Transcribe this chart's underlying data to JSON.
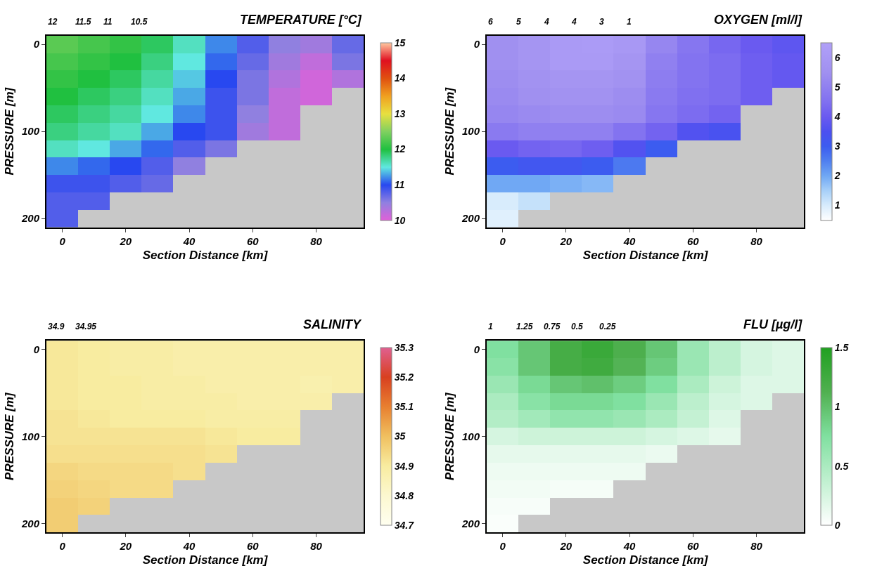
{
  "chart_data": [
    {
      "type": "heatmap",
      "title": "TEMPERATURE [°C]",
      "xlabel": "Section Distance [km]",
      "ylabel": "PRESSURE [m]",
      "categories": [
        "0",
        null,
        "20",
        null,
        "40",
        null,
        "60",
        null,
        "80",
        null
      ],
      "y_categories": [
        "0",
        null,
        null,
        null,
        null,
        "100",
        null,
        null,
        null,
        null,
        "200"
      ],
      "cells": [
        [
          12.3,
          12.2,
          12.1,
          11.9,
          11.6,
          11.2,
          10.8,
          10.5,
          10.4,
          10.7
        ],
        [
          12.2,
          12.1,
          12.0,
          11.8,
          11.5,
          11.1,
          10.7,
          10.4,
          10.2,
          10.6
        ],
        [
          12.1,
          12.0,
          11.9,
          11.7,
          11.4,
          11.0,
          10.6,
          10.3,
          10.1,
          10.3
        ],
        [
          12.0,
          11.9,
          11.8,
          11.6,
          11.3,
          10.9,
          10.6,
          10.2,
          10.1,
          null
        ],
        [
          11.9,
          11.8,
          11.7,
          11.5,
          11.2,
          10.9,
          10.5,
          10.2,
          null,
          null
        ],
        [
          11.8,
          11.7,
          11.6,
          11.3,
          11.0,
          10.9,
          10.4,
          10.2,
          null,
          null
        ],
        [
          11.6,
          11.5,
          11.3,
          11.1,
          10.8,
          10.6,
          null,
          null,
          null,
          null
        ],
        [
          11.2,
          11.1,
          11.0,
          10.8,
          10.5,
          null,
          null,
          null,
          null,
          null
        ],
        [
          10.9,
          10.9,
          10.8,
          10.7,
          null,
          null,
          null,
          null,
          null,
          null
        ],
        [
          10.8,
          10.8,
          null,
          null,
          null,
          null,
          null,
          null,
          null,
          null
        ],
        [
          10.8,
          null,
          null,
          null,
          null,
          null,
          null,
          null,
          null,
          null
        ]
      ],
      "colors": [
        "#e060d8",
        "#9080e0",
        "#2848f0",
        "#60e8e0",
        "#20c040",
        "#80d060",
        "#e8e040",
        "#f0a020",
        "#e05010",
        "#e01020",
        "#ffc8a0"
      ],
      "clim": [
        10,
        15
      ],
      "cticks": [
        10,
        11,
        12,
        13,
        14,
        15
      ],
      "annotations": [
        "12",
        "11.5",
        "11",
        "10.5"
      ]
    },
    {
      "type": "heatmap",
      "title": "OXYGEN [ml/l]",
      "xlabel": "Section Distance [km]",
      "ylabel": "PRESSURE [m]",
      "categories": [
        "0",
        null,
        "20",
        null,
        "40",
        null,
        "60",
        null,
        "80",
        null
      ],
      "y_categories": [
        "0",
        null,
        null,
        null,
        null,
        "100",
        null,
        null,
        null,
        null,
        "200"
      ],
      "cells": [
        [
          5.5,
          5.8,
          6.1,
          6.2,
          6.0,
          5.2,
          4.7,
          4.3,
          4.0,
          3.8
        ],
        [
          5.5,
          5.8,
          6.1,
          6.1,
          5.8,
          5.0,
          4.6,
          4.4,
          4.1,
          3.9
        ],
        [
          5.4,
          5.6,
          5.8,
          5.8,
          5.6,
          4.9,
          4.6,
          4.4,
          4.1,
          3.9
        ],
        [
          5.3,
          5.5,
          5.6,
          5.6,
          5.4,
          4.8,
          4.5,
          4.4,
          4.1,
          null
        ],
        [
          5.2,
          5.3,
          5.4,
          5.4,
          5.3,
          4.7,
          4.4,
          4.2,
          null,
          null
        ],
        [
          4.8,
          5.0,
          5.0,
          5.0,
          4.6,
          4.2,
          3.6,
          3.4,
          null,
          null
        ],
        [
          4.0,
          4.2,
          4.3,
          4.1,
          3.6,
          3.0,
          null,
          null,
          null,
          null
        ],
        [
          3.0,
          3.2,
          3.2,
          3.0,
          2.6,
          null,
          null,
          null,
          null,
          null
        ],
        [
          2.0,
          2.0,
          1.9,
          1.8,
          null,
          null,
          null,
          null,
          null,
          null
        ],
        [
          1.0,
          1.2,
          null,
          null,
          null,
          null,
          null,
          null,
          null,
          null
        ],
        [
          0.9,
          null,
          null,
          null,
          null,
          null,
          null,
          null,
          null,
          null
        ]
      ],
      "colors": [
        "#ffffff",
        "#d8ecfc",
        "#a8d0f8",
        "#70a8f4",
        "#5080f0",
        "#3c5cf0",
        "#4c50f0",
        "#6a5af0",
        "#8070f0",
        "#9080f0",
        "#a090f0",
        "#a898f4",
        "#b0a0f8"
      ],
      "clim": [
        0.5,
        6.5
      ],
      "cticks": [
        1,
        2,
        3,
        4,
        5,
        6
      ],
      "annotations": [
        "6",
        "5",
        "4",
        "4",
        "3",
        "1"
      ]
    },
    {
      "type": "heatmap",
      "title": "SALINITY",
      "xlabel": "Section Distance [km]",
      "ylabel": "PRESSURE [m]",
      "categories": [
        "0",
        null,
        "20",
        null,
        "40",
        null,
        "60",
        null,
        "80",
        null
      ],
      "y_categories": [
        "0",
        null,
        null,
        null,
        null,
        "100",
        null,
        null,
        null,
        null,
        "200"
      ],
      "cells": [
        [
          34.91,
          34.9,
          34.89,
          34.89,
          34.88,
          34.88,
          34.88,
          34.88,
          34.88,
          34.88
        ],
        [
          34.91,
          34.9,
          34.89,
          34.89,
          34.88,
          34.88,
          34.88,
          34.88,
          34.88,
          34.88
        ],
        [
          34.91,
          34.9,
          34.9,
          34.89,
          34.89,
          34.88,
          34.88,
          34.88,
          34.87,
          34.88
        ],
        [
          34.91,
          34.9,
          34.9,
          34.89,
          34.89,
          34.89,
          34.88,
          34.88,
          34.88,
          null
        ],
        [
          34.92,
          34.91,
          34.9,
          34.9,
          34.9,
          34.89,
          34.89,
          34.89,
          null,
          null
        ],
        [
          34.92,
          34.92,
          34.92,
          34.92,
          34.92,
          34.91,
          34.9,
          34.9,
          null,
          null
        ],
        [
          34.93,
          34.93,
          34.93,
          34.93,
          34.93,
          34.92,
          null,
          null,
          null,
          null
        ],
        [
          34.95,
          34.94,
          34.94,
          34.94,
          34.93,
          null,
          null,
          null,
          null,
          null
        ],
        [
          34.96,
          34.95,
          34.94,
          34.94,
          null,
          null,
          null,
          null,
          null,
          null
        ],
        [
          34.97,
          34.96,
          null,
          null,
          null,
          null,
          null,
          null,
          null,
          null
        ],
        [
          34.97,
          null,
          null,
          null,
          null,
          null,
          null,
          null,
          null,
          null
        ]
      ],
      "colors": [
        "#fffff0",
        "#fcf8d0",
        "#f8eca0",
        "#f0c060",
        "#e88030",
        "#d84020",
        "#e06090"
      ],
      "clim": [
        34.7,
        35.3
      ],
      "cticks": [
        34.7,
        34.8,
        34.9,
        35,
        35.1,
        35.2,
        35.3
      ],
      "annotations": [
        "34.9",
        "34.95"
      ]
    },
    {
      "type": "heatmap",
      "title": "FLU [µg/l]",
      "xlabel": "Section Distance [km]",
      "ylabel": "PRESSURE [m]",
      "categories": [
        "0",
        null,
        "20",
        null,
        "40",
        null,
        "60",
        null,
        "80",
        null
      ],
      "y_categories": [
        "0",
        null,
        null,
        null,
        null,
        "100",
        null,
        null,
        null,
        null,
        "200"
      ],
      "cells": [
        [
          0.75,
          0.95,
          1.2,
          1.3,
          1.15,
          0.95,
          0.6,
          0.4,
          0.25,
          0.2
        ],
        [
          0.7,
          0.95,
          1.2,
          1.25,
          1.1,
          0.9,
          0.6,
          0.4,
          0.25,
          0.2
        ],
        [
          0.6,
          0.8,
          0.95,
          1.0,
          0.9,
          0.75,
          0.5,
          0.3,
          0.2,
          0.2
        ],
        [
          0.5,
          0.7,
          0.8,
          0.8,
          0.75,
          0.6,
          0.4,
          0.25,
          0.2,
          null
        ],
        [
          0.45,
          0.55,
          0.65,
          0.65,
          0.6,
          0.5,
          0.35,
          0.2,
          null,
          null
        ],
        [
          0.25,
          0.3,
          0.3,
          0.3,
          0.3,
          0.25,
          0.2,
          0.15,
          null,
          null
        ],
        [
          0.15,
          0.15,
          0.15,
          0.15,
          0.15,
          0.12,
          null,
          null,
          null,
          null
        ],
        [
          0.1,
          0.1,
          0.1,
          0.1,
          0.1,
          null,
          null,
          null,
          null,
          null
        ],
        [
          0.08,
          0.08,
          0.06,
          0.06,
          null,
          null,
          null,
          null,
          null,
          null
        ],
        [
          0.05,
          0.05,
          null,
          null,
          null,
          null,
          null,
          null,
          null,
          null
        ],
        [
          0.03,
          null,
          null,
          null,
          null,
          null,
          null,
          null,
          null,
          null
        ]
      ],
      "colors": [
        "#ffffff",
        "#c0f0d0",
        "#80e0a0",
        "#50b050",
        "#20a020"
      ],
      "clim": [
        0,
        1.5
      ],
      "cticks": [
        0,
        0.5,
        1,
        1.5
      ],
      "annotations": [
        "1",
        "1.25",
        "0.75",
        "0.5",
        "0.25"
      ]
    }
  ]
}
